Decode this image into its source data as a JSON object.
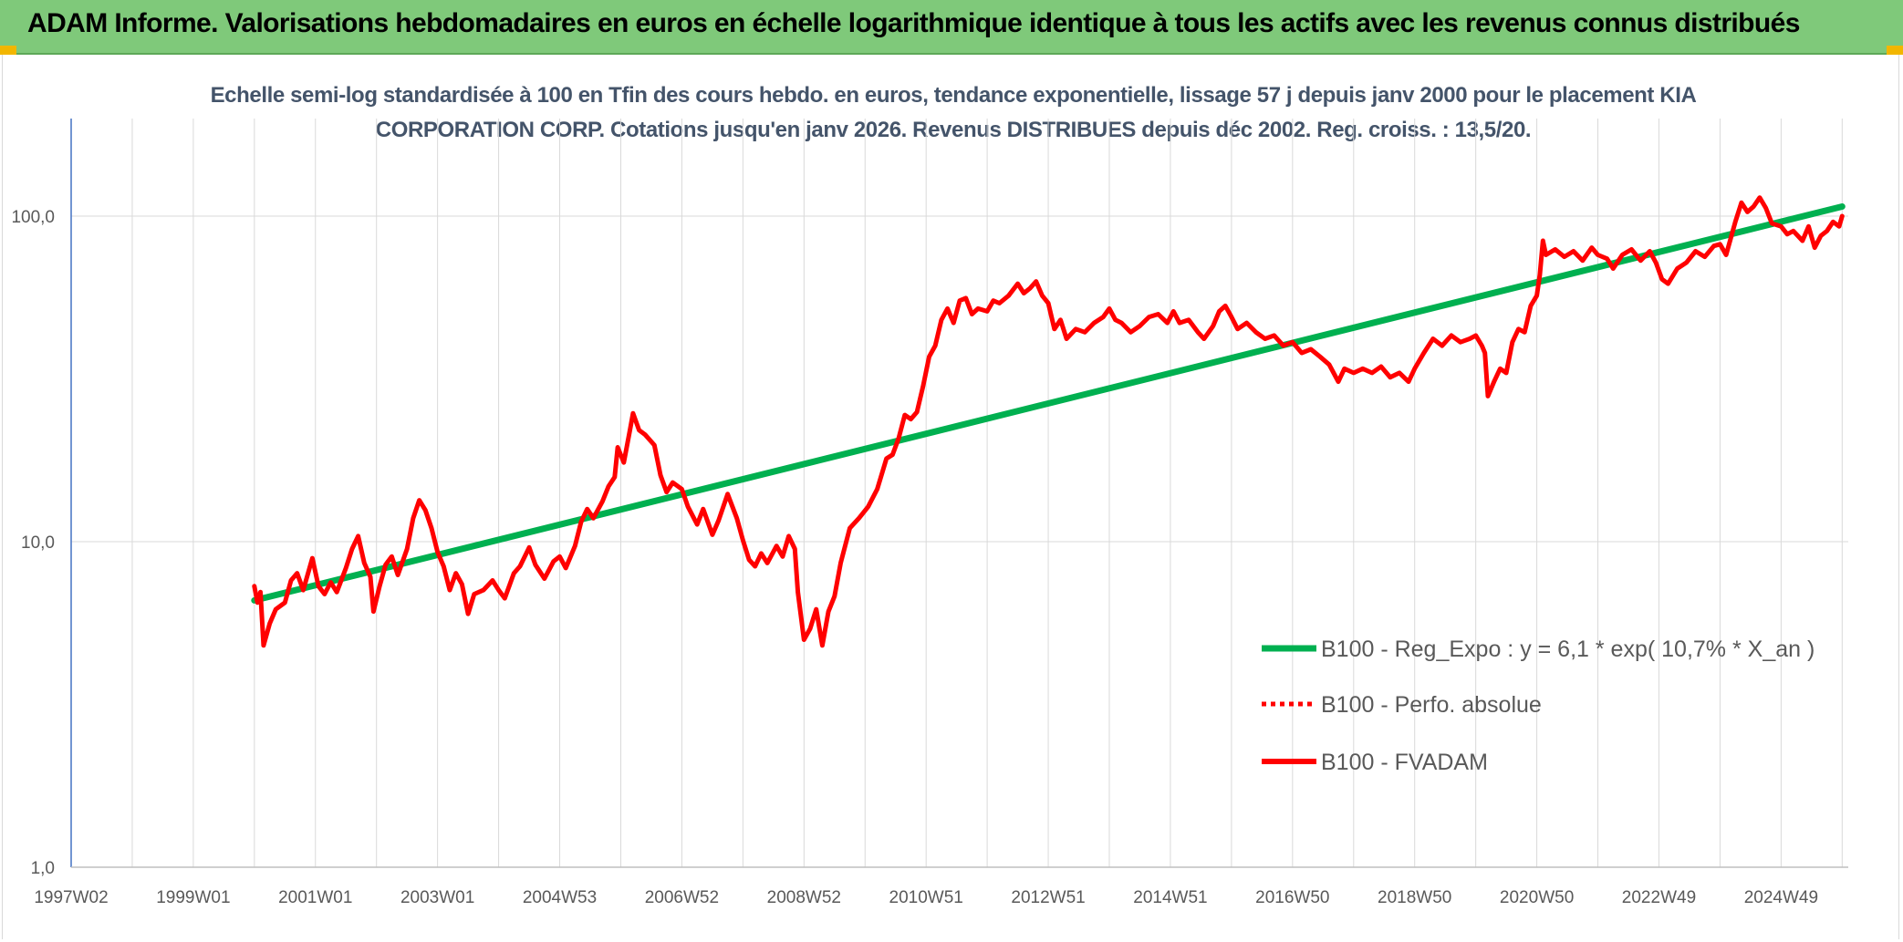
{
  "banner": {
    "title": "ADAM Informe. Valorisations hebdomadaires en euros en échelle logarithmique identique à tous les actifs avec les revenus connus distribués"
  },
  "colors": {
    "banner_bg": "#7fc97a",
    "corner": "#f2b600",
    "regression": "#00b050",
    "fvadam": "#ff0000",
    "subtitle": "#44546a",
    "grid": "#d9d9d9"
  },
  "chart_data": {
    "type": "line",
    "title": "Echelle semi-log standardisée à 100 en Tfin des cours hebdo. en euros, tendance exponentielle, lissage 57 j depuis janv 2000 pour le placement KIA CORPORATION CORP. Cotations jusqu'en janv 2026. Revenus DISTRIBUES depuis déc 2002. Reg. croiss. : 13,5/20.",
    "y_scale": "log",
    "ylim": [
      1,
      180
    ],
    "y_ticks": [
      {
        "value": 1,
        "label": "1,0"
      },
      {
        "value": 10,
        "label": "10,0"
      },
      {
        "value": 100,
        "label": "100,0"
      }
    ],
    "xlim": [
      1997.0,
      2026.1
    ],
    "x_ticks": [
      {
        "value": 1997.0,
        "label": "1997W02"
      },
      {
        "value": 1999.0,
        "label": "1999W01"
      },
      {
        "value": 2001.0,
        "label": "2001W01"
      },
      {
        "value": 2003.0,
        "label": "2003W01"
      },
      {
        "value": 2005.0,
        "label": "2004W53"
      },
      {
        "value": 2007.0,
        "label": "2006W52"
      },
      {
        "value": 2009.0,
        "label": "2008W52"
      },
      {
        "value": 2011.0,
        "label": "2010W51"
      },
      {
        "value": 2013.0,
        "label": "2012W51"
      },
      {
        "value": 2015.0,
        "label": "2014W51"
      },
      {
        "value": 2017.0,
        "label": "2016W50"
      },
      {
        "value": 2019.0,
        "label": "2018W50"
      },
      {
        "value": 2021.0,
        "label": "2020W50"
      },
      {
        "value": 2023.0,
        "label": "2022W49"
      },
      {
        "value": 2025.0,
        "label": "2024W49"
      }
    ],
    "legend": {
      "placement": "right",
      "entries": [
        {
          "label": "B100 - Reg_Expo : y = 6,1 * exp( 10,7% * X_an )",
          "style": "solid-green"
        },
        {
          "label": "B100 - Perfo. absolue",
          "style": "dotted-red"
        },
        {
          "label": "B100 - FVADAM",
          "style": "solid-red"
        }
      ]
    },
    "series": [
      {
        "name": "B100 - Reg_Expo",
        "color": "#00b050",
        "points": [
          [
            2000.0,
            6.6
          ],
          [
            2026.0,
            107.0
          ]
        ]
      },
      {
        "name": "B100 - FVADAM",
        "color": "#ff0000",
        "points": [
          [
            2000.0,
            7.3
          ],
          [
            2000.05,
            6.5
          ],
          [
            2000.1,
            7.0
          ],
          [
            2000.15,
            4.8
          ],
          [
            2000.25,
            5.6
          ],
          [
            2000.35,
            6.2
          ],
          [
            2000.5,
            6.5
          ],
          [
            2000.6,
            7.6
          ],
          [
            2000.7,
            8.0
          ],
          [
            2000.8,
            7.1
          ],
          [
            2000.95,
            8.9
          ],
          [
            2001.05,
            7.3
          ],
          [
            2001.15,
            6.9
          ],
          [
            2001.25,
            7.5
          ],
          [
            2001.35,
            7.0
          ],
          [
            2001.5,
            8.3
          ],
          [
            2001.6,
            9.5
          ],
          [
            2001.7,
            10.4
          ],
          [
            2001.8,
            8.6
          ],
          [
            2001.9,
            7.8
          ],
          [
            2001.95,
            6.1
          ],
          [
            2002.05,
            7.3
          ],
          [
            2002.15,
            8.5
          ],
          [
            2002.25,
            9.0
          ],
          [
            2002.35,
            7.9
          ],
          [
            2002.5,
            9.5
          ],
          [
            2002.6,
            11.8
          ],
          [
            2002.7,
            13.4
          ],
          [
            2002.8,
            12.5
          ],
          [
            2002.9,
            11.0
          ],
          [
            2003.0,
            9.3
          ],
          [
            2003.1,
            8.4
          ],
          [
            2003.2,
            7.1
          ],
          [
            2003.3,
            8.0
          ],
          [
            2003.4,
            7.4
          ],
          [
            2003.5,
            6.0
          ],
          [
            2003.6,
            6.9
          ],
          [
            2003.75,
            7.1
          ],
          [
            2003.9,
            7.6
          ],
          [
            2004.0,
            7.1
          ],
          [
            2004.1,
            6.7
          ],
          [
            2004.25,
            8.0
          ],
          [
            2004.35,
            8.4
          ],
          [
            2004.5,
            9.6
          ],
          [
            2004.6,
            8.5
          ],
          [
            2004.75,
            7.7
          ],
          [
            2004.9,
            8.7
          ],
          [
            2005.0,
            9.0
          ],
          [
            2005.1,
            8.3
          ],
          [
            2005.25,
            9.7
          ],
          [
            2005.35,
            11.5
          ],
          [
            2005.45,
            12.6
          ],
          [
            2005.55,
            11.8
          ],
          [
            2005.7,
            13.3
          ],
          [
            2005.8,
            14.8
          ],
          [
            2005.9,
            15.8
          ],
          [
            2005.95,
            19.5
          ],
          [
            2006.05,
            17.5
          ],
          [
            2006.15,
            22.0
          ],
          [
            2006.2,
            24.8
          ],
          [
            2006.3,
            22.0
          ],
          [
            2006.4,
            21.3
          ],
          [
            2006.55,
            19.8
          ],
          [
            2006.65,
            16.0
          ],
          [
            2006.75,
            14.2
          ],
          [
            2006.85,
            15.2
          ],
          [
            2007.0,
            14.5
          ],
          [
            2007.1,
            12.8
          ],
          [
            2007.25,
            11.3
          ],
          [
            2007.35,
            12.6
          ],
          [
            2007.5,
            10.5
          ],
          [
            2007.6,
            11.6
          ],
          [
            2007.75,
            14.0
          ],
          [
            2007.9,
            11.8
          ],
          [
            2008.0,
            10.1
          ],
          [
            2008.1,
            8.8
          ],
          [
            2008.2,
            8.4
          ],
          [
            2008.3,
            9.2
          ],
          [
            2008.4,
            8.6
          ],
          [
            2008.55,
            9.7
          ],
          [
            2008.65,
            9.0
          ],
          [
            2008.75,
            10.4
          ],
          [
            2008.85,
            9.5
          ],
          [
            2008.9,
            7.0
          ],
          [
            2009.0,
            5.0
          ],
          [
            2009.1,
            5.4
          ],
          [
            2009.2,
            6.2
          ],
          [
            2009.3,
            4.8
          ],
          [
            2009.4,
            6.1
          ],
          [
            2009.5,
            6.8
          ],
          [
            2009.6,
            8.6
          ],
          [
            2009.75,
            11.0
          ],
          [
            2009.9,
            11.8
          ],
          [
            2010.05,
            12.8
          ],
          [
            2010.2,
            14.5
          ],
          [
            2010.35,
            18.0
          ],
          [
            2010.45,
            18.5
          ],
          [
            2010.55,
            20.8
          ],
          [
            2010.65,
            24.5
          ],
          [
            2010.75,
            23.8
          ],
          [
            2010.85,
            25.0
          ],
          [
            2010.95,
            30.0
          ],
          [
            2011.05,
            37.0
          ],
          [
            2011.15,
            40.0
          ],
          [
            2011.25,
            48.0
          ],
          [
            2011.35,
            52.0
          ],
          [
            2011.45,
            47.0
          ],
          [
            2011.55,
            55.0
          ],
          [
            2011.65,
            56.0
          ],
          [
            2011.75,
            50.0
          ],
          [
            2011.85,
            52.0
          ],
          [
            2012.0,
            51.0
          ],
          [
            2012.1,
            55.0
          ],
          [
            2012.2,
            54.0
          ],
          [
            2012.35,
            57.0
          ],
          [
            2012.5,
            62.0
          ],
          [
            2012.6,
            58.0
          ],
          [
            2012.7,
            60.0
          ],
          [
            2012.8,
            63.0
          ],
          [
            2012.9,
            57.0
          ],
          [
            2013.0,
            54.0
          ],
          [
            2013.1,
            45.0
          ],
          [
            2013.2,
            48.0
          ],
          [
            2013.3,
            42.0
          ],
          [
            2013.45,
            45.0
          ],
          [
            2013.6,
            44.0
          ],
          [
            2013.75,
            47.0
          ],
          [
            2013.9,
            49.0
          ],
          [
            2014.0,
            52.0
          ],
          [
            2014.1,
            48.0
          ],
          [
            2014.2,
            47.0
          ],
          [
            2014.35,
            44.0
          ],
          [
            2014.5,
            46.0
          ],
          [
            2014.65,
            49.0
          ],
          [
            2014.8,
            50.0
          ],
          [
            2014.95,
            47.0
          ],
          [
            2015.05,
            51.0
          ],
          [
            2015.15,
            47.0
          ],
          [
            2015.3,
            48.0
          ],
          [
            2015.45,
            44.0
          ],
          [
            2015.55,
            42.0
          ],
          [
            2015.7,
            46.0
          ],
          [
            2015.8,
            51.0
          ],
          [
            2015.9,
            53.0
          ],
          [
            2016.0,
            49.0
          ],
          [
            2016.1,
            45.0
          ],
          [
            2016.25,
            47.0
          ],
          [
            2016.4,
            44.0
          ],
          [
            2016.55,
            42.0
          ],
          [
            2016.7,
            43.0
          ],
          [
            2016.85,
            40.0
          ],
          [
            2017.0,
            41.0
          ],
          [
            2017.15,
            38.0
          ],
          [
            2017.3,
            39.0
          ],
          [
            2017.45,
            37.0
          ],
          [
            2017.6,
            35.0
          ],
          [
            2017.75,
            31.0
          ],
          [
            2017.85,
            34.0
          ],
          [
            2018.0,
            33.0
          ],
          [
            2018.15,
            34.0
          ],
          [
            2018.3,
            33.0
          ],
          [
            2018.45,
            34.5
          ],
          [
            2018.6,
            32.0
          ],
          [
            2018.75,
            33.0
          ],
          [
            2018.9,
            31.0
          ],
          [
            2019.0,
            34.0
          ],
          [
            2019.15,
            38.0
          ],
          [
            2019.3,
            42.0
          ],
          [
            2019.45,
            40.0
          ],
          [
            2019.6,
            43.0
          ],
          [
            2019.75,
            41.0
          ],
          [
            2019.9,
            42.0
          ],
          [
            2020.0,
            43.0
          ],
          [
            2020.1,
            40.0
          ],
          [
            2020.15,
            38.0
          ],
          [
            2020.2,
            28.0
          ],
          [
            2020.3,
            31.0
          ],
          [
            2020.4,
            34.0
          ],
          [
            2020.5,
            33.0
          ],
          [
            2020.6,
            41.0
          ],
          [
            2020.7,
            45.0
          ],
          [
            2020.8,
            44.0
          ],
          [
            2020.9,
            53.0
          ],
          [
            2021.0,
            57.0
          ],
          [
            2021.05,
            66.0
          ],
          [
            2021.1,
            84.0
          ],
          [
            2021.15,
            76.0
          ],
          [
            2021.3,
            79.0
          ],
          [
            2021.45,
            75.0
          ],
          [
            2021.6,
            78.0
          ],
          [
            2021.75,
            73.0
          ],
          [
            2021.9,
            80.0
          ],
          [
            2022.0,
            76.0
          ],
          [
            2022.15,
            74.0
          ],
          [
            2022.25,
            69.0
          ],
          [
            2022.4,
            76.0
          ],
          [
            2022.55,
            79.0
          ],
          [
            2022.7,
            73.0
          ],
          [
            2022.85,
            78.0
          ],
          [
            2022.95,
            72.0
          ],
          [
            2023.05,
            64.0
          ],
          [
            2023.15,
            62.0
          ],
          [
            2023.3,
            69.0
          ],
          [
            2023.45,
            72.0
          ],
          [
            2023.6,
            78.0
          ],
          [
            2023.75,
            75.0
          ],
          [
            2023.9,
            81.0
          ],
          [
            2024.0,
            82.0
          ],
          [
            2024.1,
            76.0
          ],
          [
            2024.25,
            96.0
          ],
          [
            2024.35,
            110.0
          ],
          [
            2024.45,
            103.0
          ],
          [
            2024.55,
            107.0
          ],
          [
            2024.65,
            114.0
          ],
          [
            2024.75,
            106.0
          ],
          [
            2024.85,
            95.0
          ],
          [
            2025.0,
            93.0
          ],
          [
            2025.1,
            88.0
          ],
          [
            2025.2,
            90.0
          ],
          [
            2025.35,
            84.0
          ],
          [
            2025.45,
            93.0
          ],
          [
            2025.55,
            80.0
          ],
          [
            2025.65,
            87.0
          ],
          [
            2025.75,
            90.0
          ],
          [
            2025.85,
            96.0
          ],
          [
            2025.95,
            93.0
          ],
          [
            2026.0,
            100.0
          ]
        ]
      }
    ]
  }
}
